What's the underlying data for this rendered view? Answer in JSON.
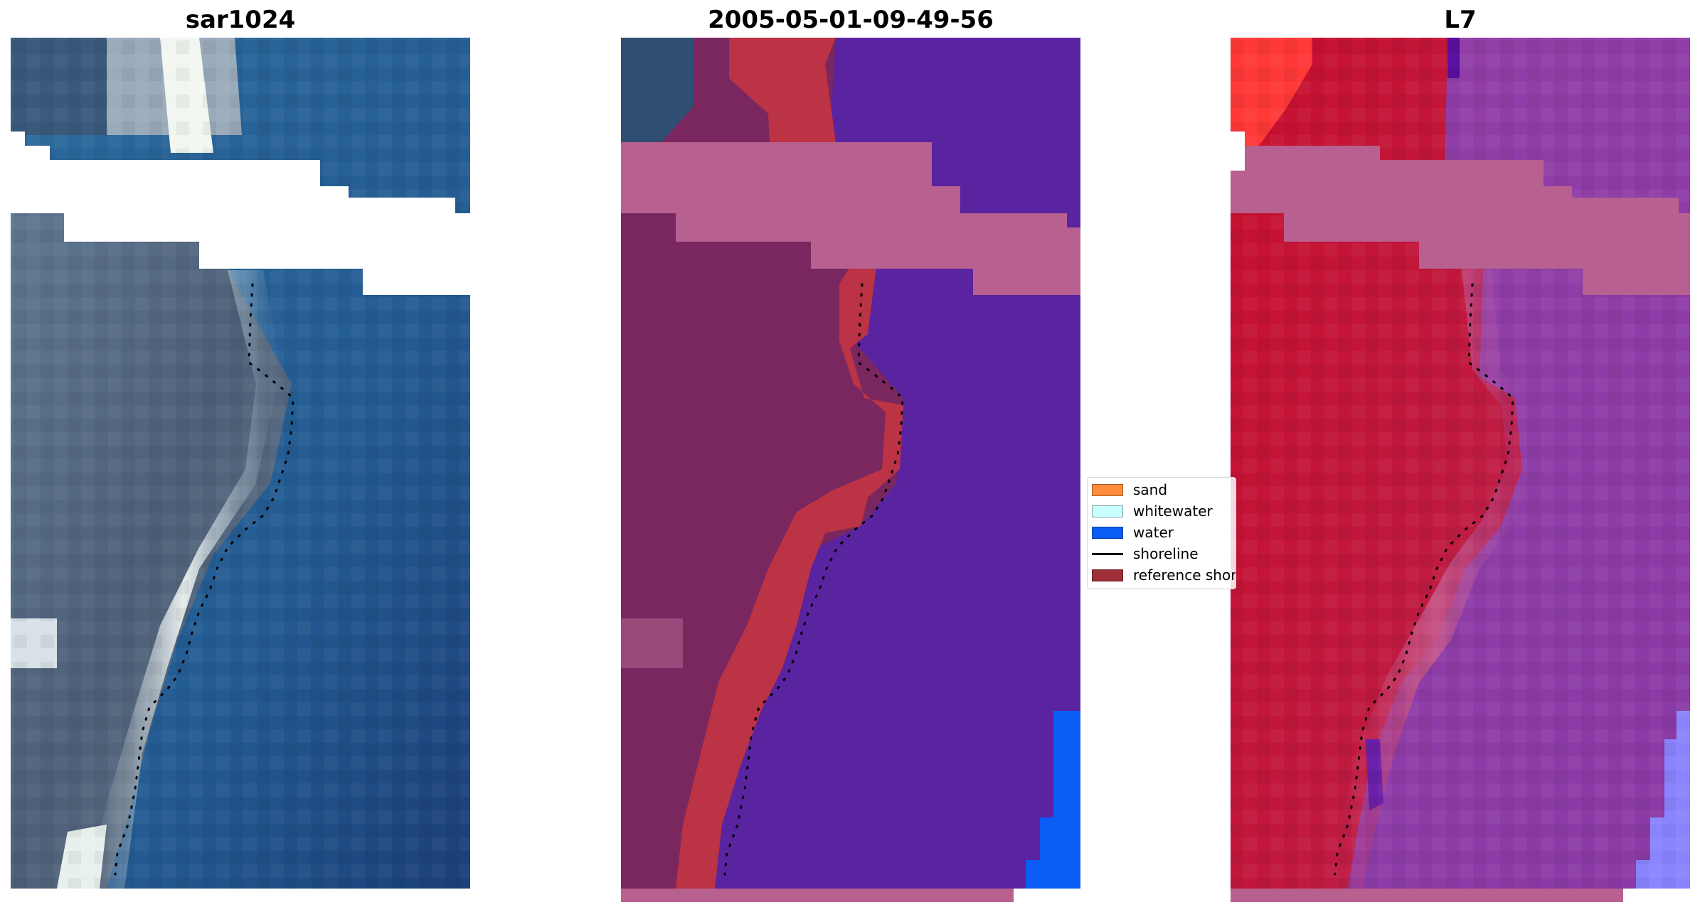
{
  "figure": {
    "panels": [
      {
        "id": "rgb",
        "title": "sar1024"
      },
      {
        "id": "classified",
        "title": "2005-05-01-09-49-56"
      },
      {
        "id": "index",
        "title": "L7"
      }
    ]
  },
  "legend": {
    "items": [
      {
        "label": "sand",
        "kind": "patch",
        "color": "#ff8c3a"
      },
      {
        "label": "whitewater",
        "kind": "patch",
        "color": "#c8ffff"
      },
      {
        "label": "water",
        "kind": "patch",
        "color": "#0a5cf5"
      },
      {
        "label": "shoreline",
        "kind": "line",
        "color": "#000000"
      },
      {
        "label": "reference shoreline",
        "kind": "patch",
        "color": "#9e2f37"
      }
    ]
  },
  "colors": {
    "land_rgb": "#5a6c80",
    "sea_rgb": "#245c93",
    "surf_white": "#e6eef0",
    "classified_water": "#5a23a0",
    "classified_land": "#7a2760",
    "reference_band": "#bb3344",
    "nodata_overlay": "#b8608f",
    "index_land": "#c41a40",
    "index_water": "#8e3ca8",
    "index_high": "#ff3838",
    "index_light_water": "#8a84ff"
  }
}
